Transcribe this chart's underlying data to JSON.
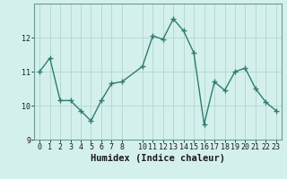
{
  "x": [
    0,
    1,
    2,
    3,
    4,
    5,
    6,
    7,
    8,
    10,
    11,
    12,
    13,
    14,
    15,
    16,
    17,
    18,
    19,
    20,
    21,
    22,
    23
  ],
  "y": [
    11.0,
    11.4,
    10.15,
    10.15,
    9.85,
    9.55,
    10.15,
    10.65,
    10.7,
    11.15,
    12.05,
    11.95,
    12.55,
    12.2,
    11.55,
    9.45,
    10.7,
    10.45,
    11.0,
    11.1,
    10.5,
    10.1,
    9.85
  ],
  "line_color": "#2e7d6e",
  "marker": "+",
  "marker_size": 4,
  "marker_linewidth": 1.0,
  "linewidth": 1.0,
  "background_color": "#d4f0ed",
  "grid_color": "#b8d8d4",
  "xlabel": "Humidex (Indice chaleur)",
  "ylim": [
    9.0,
    13.0
  ],
  "xlim": [
    -0.5,
    23.5
  ],
  "yticks": [
    9,
    10,
    11,
    12
  ],
  "xticks": [
    0,
    1,
    2,
    3,
    4,
    5,
    6,
    7,
    8,
    10,
    11,
    12,
    13,
    14,
    15,
    16,
    17,
    18,
    19,
    20,
    21,
    22,
    23
  ],
  "tick_fontsize": 6,
  "xlabel_fontsize": 7.5
}
